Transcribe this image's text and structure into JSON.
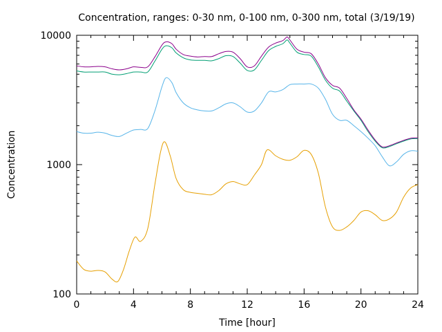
{
  "chart_data": {
    "type": "line",
    "title": "Concentration, ranges: 0-30 nm, 0-100 nm, 0-300 nm, total (3/19/19)",
    "xlabel": "Time [hour]",
    "ylabel": "Concentration",
    "xlim": [
      0,
      24
    ],
    "ylim": [
      100,
      10000
    ],
    "y_scale": "log",
    "grid": false,
    "legend": "none",
    "x_ticks": [
      0,
      4,
      8,
      12,
      16,
      20,
      24
    ],
    "x_tick_labels": [
      "0",
      "4",
      "8",
      "12",
      "16",
      "20",
      "24"
    ],
    "y_ticks": [
      100,
      1000,
      10000
    ],
    "y_tick_labels": [
      "100",
      "1000",
      "10000"
    ],
    "series": [
      {
        "color": "#e69f00",
        "x": [
          0,
          0.5,
          1,
          1.5,
          2,
          2.5,
          2.9,
          3.3,
          3.7,
          4.1,
          4.5,
          5,
          5.5,
          5.9,
          6.2,
          6.6,
          7,
          7.5,
          8,
          8.5,
          9,
          9.5,
          10,
          10.5,
          11,
          11.5,
          12,
          12.5,
          13,
          13.4,
          14,
          14.5,
          15,
          15.5,
          16,
          16.5,
          17,
          17.5,
          18,
          18.5,
          19,
          19.5,
          20,
          20.5,
          21,
          21.5,
          22,
          22.5,
          23,
          23.5,
          24
        ],
        "y": [
          180,
          155,
          150,
          152,
          148,
          130,
          125,
          155,
          215,
          275,
          255,
          320,
          700,
          1250,
          1500,
          1150,
          780,
          640,
          610,
          600,
          590,
          585,
          630,
          710,
          740,
          710,
          700,
          830,
          1000,
          1300,
          1170,
          1100,
          1080,
          1150,
          1290,
          1200,
          860,
          470,
          330,
          310,
          330,
          370,
          430,
          440,
          410,
          370,
          380,
          430,
          560,
          660,
          700
        ]
      },
      {
        "color": "#56b4e9",
        "x": [
          0,
          0.5,
          1,
          1.5,
          2,
          2.5,
          3,
          3.5,
          4,
          4.5,
          5,
          5.5,
          6,
          6.3,
          6.7,
          7,
          7.5,
          8,
          8.5,
          9,
          9.5,
          10,
          10.5,
          11,
          11.5,
          12,
          12.5,
          13,
          13.5,
          14,
          14.5,
          15,
          15.5,
          16,
          16.5,
          17,
          17.5,
          18,
          18.5,
          19,
          19.5,
          20,
          20.5,
          21,
          21.5,
          22,
          22.5,
          23,
          23.5,
          24
        ],
        "y": [
          1800,
          1750,
          1750,
          1780,
          1750,
          1680,
          1650,
          1750,
          1850,
          1870,
          1900,
          2600,
          4000,
          4700,
          4300,
          3600,
          3000,
          2750,
          2650,
          2600,
          2600,
          2750,
          2950,
          3000,
          2800,
          2550,
          2600,
          3000,
          3650,
          3650,
          3800,
          4150,
          4200,
          4200,
          4200,
          3900,
          3200,
          2450,
          2200,
          2200,
          2000,
          1800,
          1600,
          1400,
          1150,
          980,
          1050,
          1200,
          1280,
          1270
        ]
      },
      {
        "color": "#009e73",
        "x": [
          0,
          0.5,
          1,
          1.5,
          2,
          2.5,
          3,
          3.5,
          4,
          4.5,
          5,
          5.5,
          6,
          6.3,
          6.7,
          7,
          7.5,
          8,
          8.5,
          9,
          9.5,
          10,
          10.5,
          11,
          11.5,
          12,
          12.5,
          13,
          13.5,
          14,
          14.5,
          14.8,
          15,
          15.5,
          16,
          16.5,
          17,
          17.5,
          18,
          18.5,
          19,
          19.5,
          20,
          20.5,
          21,
          21.5,
          22,
          22.5,
          23,
          23.5,
          24
        ],
        "y": [
          5300,
          5200,
          5200,
          5200,
          5200,
          5000,
          4950,
          5050,
          5200,
          5200,
          5200,
          6300,
          7800,
          8300,
          8000,
          7300,
          6700,
          6450,
          6400,
          6400,
          6350,
          6600,
          6950,
          6850,
          6100,
          5350,
          5400,
          6400,
          7600,
          8200,
          8600,
          9200,
          8700,
          7400,
          7100,
          6900,
          5700,
          4500,
          3900,
          3700,
          3100,
          2600,
          2200,
          1800,
          1520,
          1350,
          1380,
          1450,
          1520,
          1580,
          1590
        ]
      },
      {
        "color": "#8b008b",
        "x": [
          0,
          0.5,
          1,
          1.5,
          2,
          2.5,
          3,
          3.5,
          4,
          4.5,
          5,
          5.5,
          6,
          6.3,
          6.7,
          7,
          7.5,
          8,
          8.5,
          9,
          9.5,
          10,
          10.5,
          11,
          11.5,
          12,
          12.5,
          13,
          13.5,
          14,
          14.5,
          14.8,
          15,
          15.5,
          16,
          16.5,
          17,
          17.5,
          18,
          18.5,
          19,
          19.5,
          20,
          20.5,
          21,
          21.5,
          22,
          22.5,
          23,
          23.5,
          24
        ],
        "y": [
          5800,
          5700,
          5700,
          5750,
          5700,
          5500,
          5400,
          5500,
          5700,
          5650,
          5700,
          6800,
          8400,
          8900,
          8600,
          7800,
          7100,
          6900,
          6800,
          6850,
          6850,
          7200,
          7500,
          7400,
          6600,
          5700,
          5800,
          6900,
          8100,
          8700,
          9100,
          9700,
          9200,
          7800,
          7400,
          7200,
          6000,
          4700,
          4100,
          3900,
          3250,
          2650,
          2250,
          1850,
          1550,
          1370,
          1400,
          1470,
          1540,
          1600,
          1610
        ]
      }
    ]
  }
}
